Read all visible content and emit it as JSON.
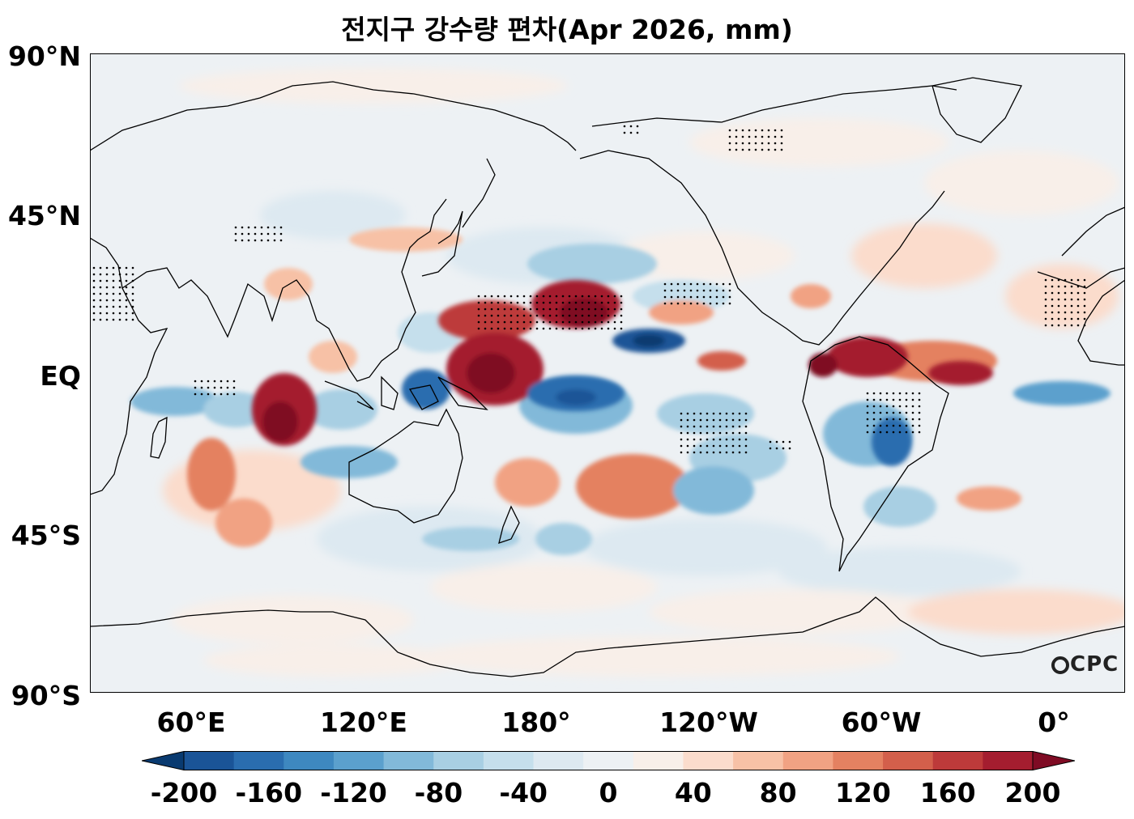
{
  "title": "전지구 강수량 편차(Apr 2026, mm)",
  "logo_text": "CPC",
  "lat_labels": [
    "90°N",
    "45°N",
    "EQ",
    "45°S",
    "90°S"
  ],
  "lon_labels": [
    "60°E",
    "120°E",
    "180°",
    "120°W",
    "60°W",
    "0°"
  ],
  "colorbar": {
    "min": -200,
    "max": 200,
    "step": 20,
    "tick_labels": [
      "-200",
      "-160",
      "-120",
      "-80",
      "-40",
      "0",
      "40",
      "80",
      "120",
      "160",
      "200"
    ],
    "colors": [
      "#093a70",
      "#1a5497",
      "#2a6daf",
      "#3e88c0",
      "#5ba0cd",
      "#82b9d9",
      "#a8cfe3",
      "#c5dfec",
      "#dde9f1",
      "#edf1f4",
      "#f8efe9",
      "#fbdccc",
      "#f7c1a6",
      "#f1a283",
      "#e48161",
      "#d35f4b",
      "#bd3a3a",
      "#a41d2f",
      "#7f0b24"
    ]
  },
  "map_data": {
    "type": "filled-contour-map",
    "projection": "plate-carree, centered 180°",
    "variable": "precipitation anomaly",
    "units": "mm",
    "period": "Apr 2026",
    "stippling": "dots mark significant anomalies",
    "main_positive_regions": [
      "western-central tropical Pacific",
      "central Indian Ocean (~80–95°E, 5°N–15°S)",
      "South Pacific convergence zone",
      "northern South America / tropical Atlantic ITCZ"
    ],
    "main_negative_regions": [
      "central equatorial Pacific (south of equator)",
      "eastern Pacific near 10°N",
      "central Brazil",
      "Maritime Continent / western Indian Ocean band"
    ]
  }
}
